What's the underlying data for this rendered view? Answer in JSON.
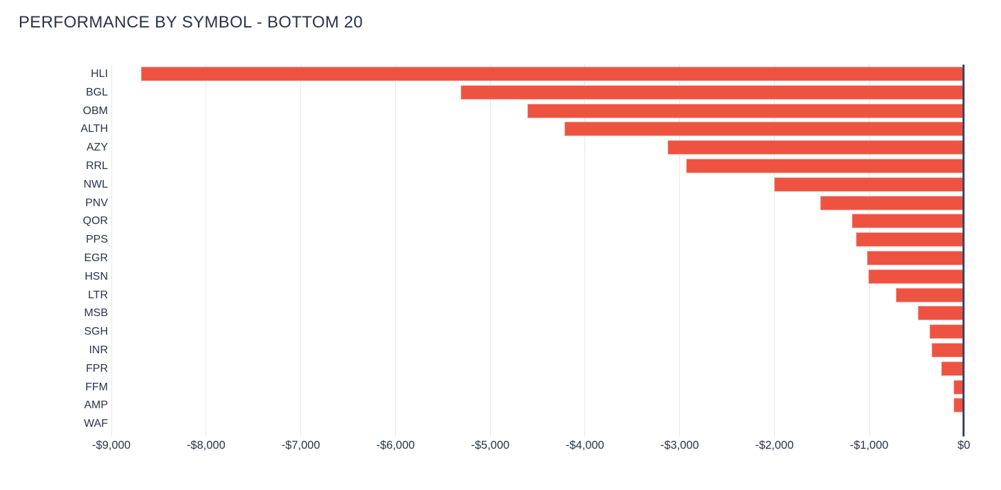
{
  "chart_data": {
    "type": "bar",
    "orientation": "horizontal",
    "title": "PERFORMANCE BY SYMBOL - BOTTOM 20",
    "categories": [
      "HLI",
      "BGL",
      "OBM",
      "ALTH",
      "AZY",
      "RRL",
      "NWL",
      "PNV",
      "QOR",
      "PPS",
      "EGR",
      "HSN",
      "LTR",
      "MSB",
      "SGH",
      "INR",
      "FPR",
      "FFM",
      "AMP",
      "WAF"
    ],
    "values": [
      -8690,
      -5310,
      -4610,
      -4220,
      -3130,
      -2930,
      -2000,
      -1520,
      -1180,
      -1140,
      -1020,
      -1010,
      -720,
      -490,
      -360,
      -340,
      -240,
      -110,
      -110,
      -5
    ],
    "xlabel": "",
    "ylabel": "",
    "xlim": [
      -9000,
      0
    ],
    "xticks": [
      {
        "value": -9000,
        "label": "-$9,000"
      },
      {
        "value": -8000,
        "label": "-$8,000"
      },
      {
        "value": -7000,
        "label": "-$7,000"
      },
      {
        "value": -6000,
        "label": "-$6,000"
      },
      {
        "value": -5000,
        "label": "-$5,000"
      },
      {
        "value": -4000,
        "label": "-$4,000"
      },
      {
        "value": -3000,
        "label": "-$3,000"
      },
      {
        "value": -2000,
        "label": "-$2,000"
      },
      {
        "value": -1000,
        "label": "-$1,000"
      },
      {
        "value": 0,
        "label": "$0"
      }
    ],
    "grid": "vertical-only",
    "legend": "none",
    "colors": {
      "bar_fill": "#ee5342",
      "bar_border": "#f6aca2",
      "text": "#28334a",
      "grid_line": "#e8e8e8",
      "zero_line": "#3a4660",
      "background": "#ffffff"
    }
  }
}
